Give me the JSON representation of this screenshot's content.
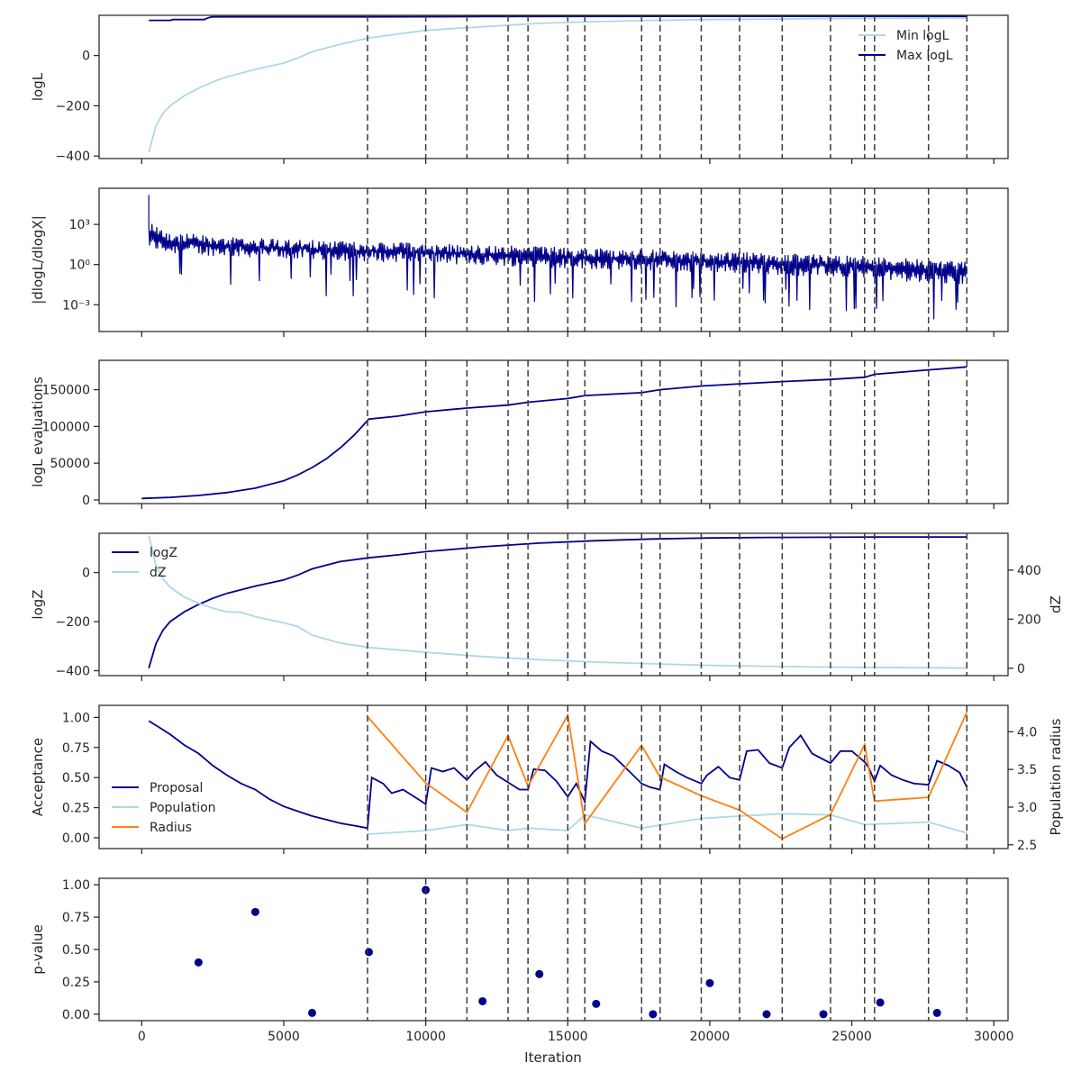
{
  "colors": {
    "navy": "#00008b",
    "lightblue": "#add8e6",
    "orange": "#ff7f0e",
    "dashed": "#3c3c3c"
  },
  "x_axis": {
    "label": "Iteration",
    "ticks": [
      0,
      5000,
      10000,
      15000,
      20000,
      25000,
      30000
    ],
    "tick_labels": [
      "0",
      "5000",
      "10000",
      "15000",
      "20000",
      "25000",
      "30000"
    ],
    "range": [
      -1500,
      30500
    ]
  },
  "vertical_lines": [
    7950,
    10000,
    11450,
    12900,
    13600,
    15000,
    15600,
    17600,
    18250,
    19700,
    21050,
    22550,
    24250,
    25450,
    25800,
    27700,
    29050
  ],
  "chart_data": [
    {
      "id": "logl",
      "type": "line",
      "ylabel": "logL",
      "ylim": [
        -410,
        160
      ],
      "yticks": [
        -400,
        -200,
        0
      ],
      "ytick_labels": [
        "−400",
        "−200",
        "0"
      ],
      "legend": {
        "position": "top-right",
        "entries": [
          "Min logL",
          "Max logL"
        ]
      },
      "series": [
        {
          "name": "Min logL",
          "color": "#add8e6",
          "x": [
            250,
            500,
            750,
            1000,
            1500,
            2000,
            2500,
            3000,
            4000,
            5000,
            5500,
            6000,
            7000,
            8000,
            9000,
            10000,
            12000,
            14000,
            16000,
            18000,
            20000,
            22000,
            24000,
            26000,
            28000,
            29050
          ],
          "y": [
            -385,
            -280,
            -230,
            -200,
            -160,
            -130,
            -105,
            -85,
            -55,
            -30,
            -10,
            15,
            45,
            70,
            85,
            100,
            115,
            128,
            135,
            140,
            143,
            145,
            147,
            148,
            149,
            150
          ]
        },
        {
          "name": "Max logL",
          "color": "#00008b",
          "x": [
            250,
            1000,
            1100,
            2200,
            2300,
            2400,
            2500,
            8000,
            12000,
            20000,
            29050
          ],
          "y": [
            140,
            140,
            143,
            143,
            148,
            152,
            154,
            154,
            155,
            156,
            156
          ]
        }
      ]
    },
    {
      "id": "dlogl",
      "type": "line",
      "ylabel": "|dlogL/dlogX|",
      "yscale": "log",
      "ylim_log10": [
        -5,
        5.7
      ],
      "yticks_log10": [
        -3,
        0,
        3
      ],
      "ytick_labels": [
        "10⁻³",
        "10⁰",
        "10³"
      ],
      "series": [
        {
          "name": "",
          "color": "#00008b",
          "noise": true,
          "trend_x": [
            250,
            1000,
            5000,
            10000,
            15000,
            20000,
            25000,
            29050
          ],
          "trend_upper_log10": [
            3.3,
            2.4,
            1.9,
            1.6,
            1.3,
            1.0,
            0.7,
            0.2
          ],
          "trend_lower_log10": [
            1.2,
            0.8,
            0.4,
            0.1,
            -0.3,
            -0.6,
            -1.0,
            -1.6
          ]
        }
      ]
    },
    {
      "id": "evals",
      "type": "line",
      "ylabel": "logL evaluations",
      "ylim": [
        -5000,
        190000
      ],
      "yticks": [
        0,
        50000,
        100000,
        150000
      ],
      "ytick_labels": [
        "0",
        "50000",
        "100000",
        "150000"
      ],
      "series": [
        {
          "name": "",
          "color": "#00008b",
          "x": [
            0,
            1000,
            2000,
            3000,
            4000,
            5000,
            5500,
            6000,
            6500,
            7000,
            7500,
            7950,
            8000,
            9000,
            10000,
            11450,
            12900,
            13600,
            15000,
            15600,
            17600,
            18250,
            19700,
            21050,
            22550,
            24250,
            25450,
            25800,
            27700,
            29050
          ],
          "y": [
            2000,
            3500,
            6000,
            10000,
            16000,
            26000,
            34000,
            44000,
            56000,
            71000,
            89000,
            108000,
            110000,
            114000,
            120000,
            125000,
            129000,
            133000,
            138000,
            142000,
            146000,
            150000,
            155000,
            158000,
            161000,
            164000,
            167000,
            171000,
            177000,
            181000
          ]
        }
      ]
    },
    {
      "id": "logz",
      "type": "line",
      "ylabel": "logZ",
      "ylabel_right": "dZ",
      "ylim": [
        -420,
        160
      ],
      "yticks": [
        -400,
        -200,
        0
      ],
      "ytick_labels": [
        "−400",
        "−200",
        "0"
      ],
      "ylim_right": [
        -30,
        550
      ],
      "yticks_right": [
        0,
        200,
        400
      ],
      "ytick_labels_right": [
        "0",
        "200",
        "400"
      ],
      "legend": {
        "position": "top-left",
        "entries": [
          "logZ",
          "dZ"
        ]
      },
      "series": [
        {
          "name": "logZ",
          "color": "#00008b",
          "axis": "left",
          "x": [
            250,
            500,
            750,
            1000,
            1500,
            2000,
            2500,
            3000,
            4000,
            5000,
            5500,
            6000,
            7000,
            8000,
            9000,
            10000,
            12000,
            14000,
            16000,
            18000,
            20000,
            22000,
            24000,
            26000,
            28000,
            29050
          ],
          "y": [
            -390,
            -290,
            -235,
            -200,
            -160,
            -130,
            -105,
            -85,
            -55,
            -30,
            -10,
            15,
            45,
            60,
            72,
            85,
            105,
            120,
            130,
            137,
            141,
            143,
            144,
            145,
            145,
            145
          ]
        },
        {
          "name": "dZ",
          "color": "#add8e6",
          "axis": "right",
          "x": [
            250,
            500,
            750,
            1000,
            1500,
            2000,
            2500,
            3000,
            3500,
            4000,
            5000,
            5500,
            6000,
            7000,
            8000,
            10000,
            12000,
            14000,
            16000,
            18000,
            20000,
            22000,
            24000,
            26000,
            28000,
            29050
          ],
          "y": [
            540,
            420,
            365,
            330,
            290,
            265,
            245,
            230,
            228,
            210,
            185,
            170,
            135,
            102,
            85,
            65,
            48,
            35,
            25,
            18,
            12,
            8,
            5,
            3,
            2,
            1
          ]
        }
      ]
    },
    {
      "id": "acceptance",
      "type": "line",
      "ylabel": "Acceptance",
      "ylabel_right": "Population radius",
      "ylim": [
        -0.09,
        1.1
      ],
      "yticks": [
        0.0,
        0.25,
        0.5,
        0.75,
        1.0
      ],
      "ytick_labels": [
        "0.00",
        "0.25",
        "0.50",
        "0.75",
        "1.00"
      ],
      "ylim_right": [
        2.45,
        4.35
      ],
      "yticks_right": [
        2.5,
        3.0,
        3.5,
        4.0
      ],
      "ytick_labels_right": [
        "2.5",
        "3.0",
        "3.5",
        "4.0"
      ],
      "legend": {
        "position": "lower-left",
        "entries": [
          "Proposal",
          "Population",
          "Radius"
        ]
      },
      "series": [
        {
          "name": "Proposal",
          "color": "#00008b",
          "axis": "left",
          "x": [
            250,
            600,
            1000,
            1500,
            2000,
            2500,
            3000,
            3500,
            4000,
            4500,
            5000,
            5500,
            6000,
            6500,
            7000,
            7500,
            7950,
            8100,
            8500,
            8800,
            9200,
            9600,
            10000,
            10200,
            10600,
            11000,
            11450,
            11700,
            12100,
            12500,
            12900,
            13300,
            13600,
            13800,
            14200,
            14600,
            15000,
            15300,
            15600,
            15800,
            16200,
            16600,
            17000,
            17600,
            17900,
            18250,
            18400,
            18800,
            19200,
            19700,
            19900,
            20300,
            20700,
            21050,
            21300,
            21700,
            22100,
            22550,
            22800,
            23200,
            23600,
            24000,
            24250,
            24600,
            25000,
            25450,
            25600,
            25800,
            26000,
            26400,
            26800,
            27200,
            27700,
            28000,
            28400,
            28800,
            29050
          ],
          "y": [
            0.97,
            0.92,
            0.86,
            0.77,
            0.7,
            0.6,
            0.52,
            0.45,
            0.4,
            0.32,
            0.26,
            0.22,
            0.18,
            0.15,
            0.12,
            0.1,
            0.08,
            0.5,
            0.45,
            0.37,
            0.4,
            0.34,
            0.28,
            0.58,
            0.55,
            0.58,
            0.48,
            0.55,
            0.63,
            0.52,
            0.46,
            0.4,
            0.4,
            0.57,
            0.56,
            0.47,
            0.34,
            0.45,
            0.3,
            0.8,
            0.72,
            0.68,
            0.59,
            0.45,
            0.42,
            0.4,
            0.61,
            0.55,
            0.5,
            0.45,
            0.52,
            0.59,
            0.5,
            0.48,
            0.72,
            0.73,
            0.62,
            0.58,
            0.75,
            0.85,
            0.7,
            0.65,
            0.62,
            0.72,
            0.72,
            0.63,
            0.58,
            0.47,
            0.6,
            0.52,
            0.48,
            0.45,
            0.44,
            0.64,
            0.6,
            0.54,
            0.42
          ]
        },
        {
          "name": "Population",
          "color": "#add8e6",
          "axis": "left",
          "x": [
            7950,
            10000,
            11450,
            12900,
            13600,
            15000,
            15600,
            17600,
            19700,
            21050,
            22550,
            24250,
            25450,
            27700,
            29050
          ],
          "y": [
            0.03,
            0.06,
            0.11,
            0.06,
            0.08,
            0.06,
            0.19,
            0.08,
            0.16,
            0.18,
            0.2,
            0.19,
            0.11,
            0.13,
            0.04
          ]
        },
        {
          "name": "Radius",
          "color": "#ff7f0e",
          "axis": "right",
          "x": [
            7950,
            10000,
            11450,
            12900,
            13600,
            15000,
            15600,
            17600,
            18250,
            19700,
            21050,
            22550,
            24250,
            25450,
            25800,
            27700,
            29050
          ],
          "y": [
            4.2,
            3.32,
            2.93,
            3.95,
            3.28,
            4.22,
            2.78,
            3.82,
            3.4,
            3.15,
            2.96,
            2.58,
            2.9,
            3.83,
            3.08,
            3.13,
            4.26
          ]
        }
      ]
    },
    {
      "id": "pvalue",
      "type": "scatter",
      "ylabel": "p-value",
      "ylim": [
        -0.05,
        1.05
      ],
      "yticks": [
        0.0,
        0.25,
        0.5,
        0.75,
        1.0
      ],
      "ytick_labels": [
        "0.00",
        "0.25",
        "0.50",
        "0.75",
        "1.00"
      ],
      "series": [
        {
          "name": "",
          "color": "#00008b",
          "x": [
            2000,
            4000,
            6000,
            8000,
            10000,
            12000,
            14000,
            16000,
            18000,
            20000,
            22000,
            24000,
            26000,
            28000
          ],
          "y": [
            0.4,
            0.79,
            0.01,
            0.48,
            0.96,
            0.1,
            0.31,
            0.08,
            0.0,
            0.24,
            0.0,
            0.0,
            0.09,
            0.01
          ]
        }
      ]
    }
  ]
}
